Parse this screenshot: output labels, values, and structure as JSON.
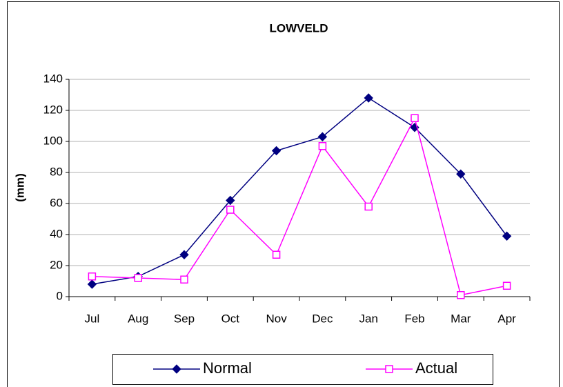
{
  "chart_data": {
    "type": "line",
    "title": "LOWVELD",
    "y_label": "(mm)",
    "categories": [
      "Jul",
      "Aug",
      "Sep",
      "Oct",
      "Nov",
      "Dec",
      "Jan",
      "Feb",
      "Mar",
      "Apr"
    ],
    "series": [
      {
        "name": "Normal",
        "color": "#000080",
        "marker": "diamond",
        "values": [
          8,
          13,
          27,
          62,
          94,
          103,
          128,
          109,
          79,
          39
        ]
      },
      {
        "name": "Actual",
        "color": "#ff00ff",
        "marker": "square",
        "values": [
          13,
          12,
          11,
          56,
          27,
          97,
          58,
          115,
          1,
          7
        ]
      }
    ],
    "ylim": [
      0,
      140
    ],
    "yticks": [
      0,
      20,
      40,
      60,
      80,
      100,
      120,
      140
    ],
    "grid": true,
    "legend": "bottom"
  }
}
